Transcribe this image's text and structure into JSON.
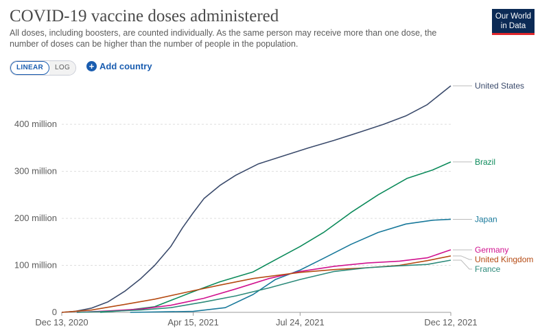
{
  "header": {
    "title": "COVID-19 vaccine doses administered",
    "subtitle": "All doses, including boosters, are counted individually. As the same person may receive more than one dose, the number of doses can be higher than the number of people in the population."
  },
  "logo": {
    "line1": "Our World",
    "line2": "in Data"
  },
  "controls": {
    "linear_label": "LINEAR",
    "log_label": "LOG",
    "add_country_label": "Add country"
  },
  "chart_data": {
    "type": "line",
    "title": "COVID-19 vaccine doses administered",
    "xlabel": "",
    "ylabel": "",
    "x_range": [
      "2020-12-13",
      "2021-12-12"
    ],
    "x_ticks": [
      "Dec 13, 2020",
      "Apr 15, 2021",
      "Jul 24, 2021",
      "Dec 12, 2021"
    ],
    "y_ticks": [
      "0",
      "100 million",
      "200 million",
      "300 million",
      "400 million"
    ],
    "ylim": [
      0,
      482000000
    ],
    "grid": "horizontal dashed",
    "legend": "right end labels",
    "series": [
      {
        "name": "United States",
        "color": "#3a4a6b",
        "x": [
          "2020-12-13",
          "2020-12-25",
          "2021-01-10",
          "2021-01-25",
          "2021-02-10",
          "2021-02-25",
          "2021-03-10",
          "2021-03-25",
          "2021-04-05",
          "2021-04-15",
          "2021-04-25",
          "2021-05-10",
          "2021-05-25",
          "2021-06-15",
          "2021-07-10",
          "2021-08-01",
          "2021-08-25",
          "2021-09-20",
          "2021-10-10",
          "2021-10-31",
          "2021-11-20",
          "2021-12-12"
        ],
        "y": [
          0,
          2000000,
          9000000,
          22000000,
          45000000,
          72000000,
          100000000,
          140000000,
          180000000,
          212000000,
          242000000,
          270000000,
          292000000,
          316000000,
          334000000,
          350000000,
          366000000,
          385000000,
          400000000,
          418000000,
          442000000,
          482000000
        ]
      },
      {
        "name": "Brazil",
        "color": "#0b8a5a",
        "x": [
          "2021-01-18",
          "2021-02-10",
          "2021-03-10",
          "2021-04-15",
          "2021-05-10",
          "2021-06-10",
          "2021-07-05",
          "2021-07-24",
          "2021-08-15",
          "2021-09-10",
          "2021-10-05",
          "2021-11-01",
          "2021-11-25",
          "2021-12-12"
        ],
        "y": [
          0,
          4000000,
          12000000,
          44000000,
          65000000,
          86000000,
          117000000,
          140000000,
          170000000,
          213000000,
          250000000,
          285000000,
          303000000,
          320000000
        ]
      },
      {
        "name": "Japan",
        "color": "#17789a",
        "x": [
          "2021-02-15",
          "2021-03-15",
          "2021-04-15",
          "2021-05-15",
          "2021-06-10",
          "2021-07-01",
          "2021-07-24",
          "2021-08-15",
          "2021-09-10",
          "2021-10-05",
          "2021-10-31",
          "2021-11-25",
          "2021-12-12"
        ],
        "y": [
          0,
          1000000,
          2000000,
          10000000,
          38000000,
          70000000,
          90000000,
          115000000,
          145000000,
          170000000,
          188000000,
          196000000,
          198000000
        ]
      },
      {
        "name": "Germany",
        "color": "#d0118e",
        "x": [
          "2020-12-27",
          "2021-01-25",
          "2021-02-25",
          "2021-03-25",
          "2021-04-25",
          "2021-05-25",
          "2021-06-25",
          "2021-07-24",
          "2021-08-25",
          "2021-09-25",
          "2021-10-25",
          "2021-11-20",
          "2021-12-12"
        ],
        "y": [
          0,
          3000000,
          7000000,
          15000000,
          30000000,
          50000000,
          72000000,
          87000000,
          98000000,
          105000000,
          109000000,
          116000000,
          133000000
        ]
      },
      {
        "name": "United Kingdom",
        "color": "#b54a12",
        "x": [
          "2020-12-13",
          "2021-01-10",
          "2021-02-10",
          "2021-03-10",
          "2021-04-15",
          "2021-05-10",
          "2021-06-10",
          "2021-07-24",
          "2021-08-25",
          "2021-09-25",
          "2021-10-25",
          "2021-11-20",
          "2021-12-12"
        ],
        "y": [
          0,
          5000000,
          17000000,
          28000000,
          46000000,
          58000000,
          72000000,
          85000000,
          91000000,
          95000000,
          100000000,
          110000000,
          120000000
        ]
      },
      {
        "name": "France",
        "color": "#2c8a7a",
        "x": [
          "2020-12-27",
          "2021-01-25",
          "2021-02-25",
          "2021-03-25",
          "2021-04-25",
          "2021-05-25",
          "2021-06-25",
          "2021-07-24",
          "2021-08-25",
          "2021-09-25",
          "2021-10-25",
          "2021-11-20",
          "2021-12-12"
        ],
        "y": [
          0,
          2000000,
          5000000,
          10000000,
          22000000,
          35000000,
          52000000,
          70000000,
          87000000,
          95000000,
          99000000,
          102000000,
          111000000
        ]
      }
    ]
  }
}
